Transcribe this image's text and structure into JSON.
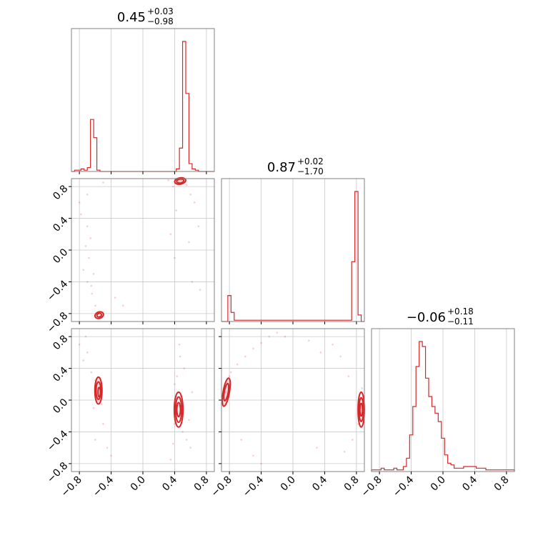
{
  "chart_data": {
    "type": "corner",
    "range": [
      -0.9,
      0.9
    ],
    "ticks": [
      -0.8,
      -0.4,
      0.0,
      0.4,
      0.8
    ],
    "tick_labels": [
      "−0.8",
      "−0.4",
      "0.0",
      "0.4",
      "0.8"
    ],
    "color": "#d62728",
    "grid": true,
    "titles": [
      {
        "value": "0.45",
        "plus": "+0.03",
        "minus": "−0.98"
      },
      {
        "value": "0.87",
        "plus": "+0.02",
        "minus": "−1.70"
      },
      {
        "value": "−0.06",
        "plus": "+0.18",
        "minus": "−0.11"
      }
    ],
    "histograms": [
      {
        "bins": [
          -0.9,
          -0.86,
          -0.82,
          -0.78,
          -0.74,
          -0.7,
          -0.66,
          -0.62,
          -0.58,
          -0.54,
          -0.5,
          -0.46,
          -0.42,
          -0.38,
          -0.34,
          -0.3,
          -0.26,
          -0.22,
          -0.18,
          -0.14,
          -0.1,
          -0.06,
          -0.02,
          0.02,
          0.06,
          0.1,
          0.14,
          0.18,
          0.22,
          0.26,
          0.3,
          0.34,
          0.38,
          0.42,
          0.46,
          0.5,
          0.54,
          0.58,
          0.62,
          0.66,
          0.7,
          0.74,
          0.78,
          0.82,
          0.86,
          0.9
        ],
        "counts": [
          0,
          1,
          1,
          2,
          1,
          3,
          40,
          26,
          1,
          0,
          0,
          0,
          0,
          0,
          0,
          0,
          0,
          0,
          0,
          0,
          0,
          0,
          0,
          0,
          0,
          0,
          0,
          0,
          0,
          0,
          0,
          0,
          0,
          2,
          18,
          100,
          60,
          6,
          2,
          1,
          0,
          0,
          0,
          0,
          0
        ]
      },
      {
        "bins": [
          -0.9,
          -0.86,
          -0.82,
          -0.78,
          -0.74,
          -0.7,
          -0.66,
          -0.62,
          -0.58,
          -0.54,
          -0.5,
          -0.46,
          -0.42,
          -0.38,
          -0.34,
          -0.3,
          -0.26,
          -0.22,
          -0.18,
          -0.14,
          -0.1,
          -0.06,
          -0.02,
          0.02,
          0.06,
          0.1,
          0.14,
          0.18,
          0.22,
          0.26,
          0.3,
          0.34,
          0.38,
          0.42,
          0.46,
          0.5,
          0.54,
          0.58,
          0.62,
          0.66,
          0.7,
          0.74,
          0.78,
          0.82,
          0.86,
          0.9
        ],
        "counts": [
          0,
          0,
          20,
          7,
          1,
          1,
          1,
          1,
          1,
          1,
          1,
          1,
          1,
          1,
          1,
          1,
          1,
          1,
          1,
          1,
          1,
          1,
          1,
          1,
          1,
          1,
          1,
          1,
          1,
          1,
          1,
          1,
          1,
          1,
          1,
          1,
          1,
          1,
          1,
          1,
          1,
          46,
          100,
          5,
          0
        ]
      },
      {
        "bins": [
          -0.9,
          -0.86,
          -0.82,
          -0.78,
          -0.74,
          -0.7,
          -0.66,
          -0.62,
          -0.58,
          -0.54,
          -0.5,
          -0.46,
          -0.42,
          -0.38,
          -0.34,
          -0.3,
          -0.26,
          -0.22,
          -0.18,
          -0.14,
          -0.1,
          -0.06,
          -0.02,
          0.02,
          0.06,
          0.1,
          0.14,
          0.18,
          0.22,
          0.26,
          0.3,
          0.34,
          0.38,
          0.42,
          0.46,
          0.5,
          0.54,
          0.58,
          0.62,
          0.66,
          0.7,
          0.74,
          0.78,
          0.82,
          0.86,
          0.9
        ],
        "counts": [
          1,
          1,
          1,
          2,
          1,
          1,
          1,
          2,
          1,
          1,
          3,
          8,
          22,
          39,
          63,
          78,
          75,
          56,
          45,
          39,
          35,
          30,
          20,
          10,
          5,
          4,
          2,
          2,
          2,
          3,
          3,
          3,
          3,
          2,
          2,
          2,
          1,
          1,
          1,
          1,
          1,
          1,
          1,
          1,
          1
        ]
      }
    ],
    "scatter_panels": [
      {
        "row": 1,
        "col": 0,
        "points": [
          [
            0.45,
            0.86
          ],
          [
            0.48,
            0.88
          ],
          [
            0.43,
            0.9
          ],
          [
            0.5,
            0.84
          ],
          [
            0.38,
            0.8
          ],
          [
            0.55,
            0.82
          ],
          [
            0.6,
            0.7
          ],
          [
            0.32,
            0.88
          ],
          [
            0.65,
            0.6
          ],
          [
            0.42,
            0.5
          ],
          [
            0.7,
            0.3
          ],
          [
            0.35,
            0.2
          ],
          [
            0.58,
            0.1
          ],
          [
            0.4,
            -0.1
          ],
          [
            0.62,
            -0.4
          ],
          [
            0.72,
            -0.5
          ],
          [
            -0.7,
            0.3
          ],
          [
            -0.66,
            0.15
          ],
          [
            -0.72,
            0.05
          ],
          [
            -0.68,
            -0.1
          ],
          [
            -0.75,
            -0.25
          ],
          [
            -0.7,
            -0.4
          ],
          [
            -0.64,
            -0.55
          ],
          [
            -0.6,
            -0.7
          ],
          [
            -0.57,
            -0.78
          ],
          [
            -0.54,
            -0.82
          ],
          [
            -0.52,
            -0.85
          ],
          [
            -0.5,
            -0.8
          ],
          [
            -0.78,
            0.45
          ],
          [
            -0.8,
            0.6
          ],
          [
            -0.35,
            -0.6
          ],
          [
            -0.25,
            -0.7
          ],
          [
            -0.5,
            0.85
          ],
          [
            -0.7,
            0.7
          ],
          [
            -0.62,
            -0.3
          ],
          [
            -0.65,
            -0.45
          ]
        ],
        "contours": [
          {
            "cx": 0.47,
            "cy": 0.87,
            "rx": 0.07,
            "ry": 0.04,
            "rot": -10
          },
          {
            "cx": 0.47,
            "cy": 0.87,
            "rx": 0.045,
            "ry": 0.025,
            "rot": -10
          },
          {
            "cx": -0.55,
            "cy": -0.82,
            "rx": 0.055,
            "ry": 0.04,
            "rot": -20
          },
          {
            "cx": -0.55,
            "cy": -0.82,
            "rx": 0.03,
            "ry": 0.022,
            "rot": -20
          }
        ]
      },
      {
        "row": 2,
        "col": 0,
        "points": [
          [
            -0.58,
            0.15
          ],
          [
            -0.55,
            0.05
          ],
          [
            -0.6,
            0.25
          ],
          [
            -0.52,
            -0.05
          ],
          [
            -0.62,
            -0.1
          ],
          [
            -0.65,
            0.35
          ],
          [
            -0.7,
            0.6
          ],
          [
            -0.72,
            0.8
          ],
          [
            -0.8,
            0.7
          ],
          [
            -0.75,
            0.5
          ],
          [
            -0.5,
            -0.3
          ],
          [
            -0.45,
            -0.6
          ],
          [
            -0.6,
            -0.5
          ],
          [
            -0.4,
            -0.7
          ],
          [
            0.42,
            -0.1
          ],
          [
            0.45,
            -0.2
          ],
          [
            0.48,
            0.05
          ],
          [
            0.4,
            -0.3
          ],
          [
            0.5,
            -0.4
          ],
          [
            0.43,
            0.3
          ],
          [
            0.47,
            0.55
          ],
          [
            0.46,
            0.7
          ],
          [
            0.55,
            -0.5
          ],
          [
            0.6,
            -0.6
          ],
          [
            0.38,
            -0.55
          ],
          [
            0.52,
            0.4
          ],
          [
            0.4,
            0.2
          ],
          [
            0.58,
            -0.25
          ],
          [
            0.62,
            0.1
          ],
          [
            0.35,
            -0.75
          ]
        ],
        "contours": [
          {
            "cx": -0.56,
            "cy": 0.12,
            "rx": 0.045,
            "ry": 0.17,
            "rot": 0
          },
          {
            "cx": -0.56,
            "cy": 0.12,
            "rx": 0.03,
            "ry": 0.11,
            "rot": 0
          },
          {
            "cx": -0.55,
            "cy": 0.1,
            "rx": 0.015,
            "ry": 0.06,
            "rot": 0
          },
          {
            "cx": 0.45,
            "cy": -0.12,
            "rx": 0.055,
            "ry": 0.22,
            "rot": 0
          },
          {
            "cx": 0.45,
            "cy": -0.12,
            "rx": 0.038,
            "ry": 0.16,
            "rot": 0
          },
          {
            "cx": 0.45,
            "cy": -0.12,
            "rx": 0.022,
            "ry": 0.09,
            "rot": 0
          }
        ]
      },
      {
        "row": 2,
        "col": 1,
        "points": [
          [
            -0.85,
            0.1
          ],
          [
            -0.83,
            0.2
          ],
          [
            -0.86,
            0.0
          ],
          [
            -0.8,
            0.3
          ],
          [
            -0.78,
            0.35
          ],
          [
            -0.7,
            0.45
          ],
          [
            -0.6,
            0.55
          ],
          [
            -0.5,
            0.65
          ],
          [
            -0.4,
            0.72
          ],
          [
            -0.3,
            0.8
          ],
          [
            -0.2,
            0.85
          ],
          [
            -0.1,
            0.8
          ],
          [
            0.85,
            -0.1
          ],
          [
            0.86,
            -0.2
          ],
          [
            0.84,
            0.0
          ],
          [
            0.87,
            0.15
          ],
          [
            0.82,
            -0.3
          ],
          [
            0.7,
            0.3
          ],
          [
            0.6,
            0.55
          ],
          [
            0.5,
            0.7
          ],
          [
            0.35,
            0.6
          ],
          [
            0.2,
            0.75
          ],
          [
            0.75,
            -0.5
          ],
          [
            0.65,
            -0.65
          ],
          [
            -0.65,
            -0.5
          ],
          [
            -0.5,
            -0.7
          ],
          [
            -0.4,
            -0.8
          ],
          [
            0.3,
            -0.6
          ]
        ],
        "contours": [
          {
            "cx": -0.84,
            "cy": 0.1,
            "rx": 0.04,
            "ry": 0.18,
            "rot": 10
          },
          {
            "cx": -0.84,
            "cy": 0.1,
            "rx": 0.025,
            "ry": 0.11,
            "rot": 10
          },
          {
            "cx": 0.86,
            "cy": -0.12,
            "rx": 0.04,
            "ry": 0.22,
            "rot": 0
          },
          {
            "cx": 0.86,
            "cy": -0.12,
            "rx": 0.028,
            "ry": 0.15,
            "rot": 0
          },
          {
            "cx": 0.86,
            "cy": -0.12,
            "rx": 0.016,
            "ry": 0.08,
            "rot": 0
          }
        ]
      }
    ]
  }
}
